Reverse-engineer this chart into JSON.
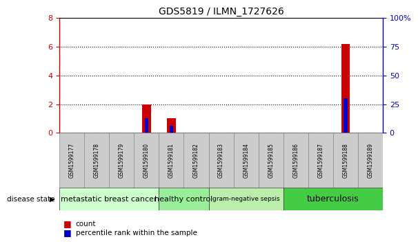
{
  "title": "GDS5819 / ILMN_1727626",
  "samples": [
    "GSM1599177",
    "GSM1599178",
    "GSM1599179",
    "GSM1599180",
    "GSM1599181",
    "GSM1599182",
    "GSM1599183",
    "GSM1599184",
    "GSM1599185",
    "GSM1599186",
    "GSM1599187",
    "GSM1599188",
    "GSM1599189"
  ],
  "count_values": [
    0,
    0,
    0,
    2.0,
    1.0,
    0,
    0,
    0,
    0,
    0,
    0,
    6.2,
    0
  ],
  "percentile_values": [
    0,
    0,
    0,
    12.5,
    6.25,
    0,
    0,
    0,
    0,
    0,
    0,
    30.0,
    0
  ],
  "ylim_left": [
    0,
    8
  ],
  "ylim_right": [
    0,
    100
  ],
  "yticks_left": [
    0,
    2,
    4,
    6,
    8
  ],
  "yticks_right": [
    0,
    25,
    50,
    75,
    100
  ],
  "ytick_labels_right": [
    "0",
    "25",
    "50",
    "75",
    "100%"
  ],
  "disease_groups": [
    {
      "label": "metastatic breast cancer",
      "start": 0,
      "end": 4,
      "color": "#ccffcc",
      "fontsize": 8
    },
    {
      "label": "healthy control",
      "start": 4,
      "end": 6,
      "color": "#99ee99",
      "fontsize": 8
    },
    {
      "label": "gram-negative sepsis",
      "start": 6,
      "end": 9,
      "color": "#bbeeaa",
      "fontsize": 6.5
    },
    {
      "label": "tuberculosis",
      "start": 9,
      "end": 13,
      "color": "#44cc44",
      "fontsize": 9
    }
  ],
  "bar_color_red": "#cc0000",
  "bar_color_blue": "#0000cc",
  "bar_width": 0.35,
  "tick_color_left": "#cc0000",
  "tick_color_right": "#0000bb",
  "sample_box_color": "#cccccc",
  "legend_count_label": "count",
  "legend_percentile_label": "percentile rank within the sample"
}
